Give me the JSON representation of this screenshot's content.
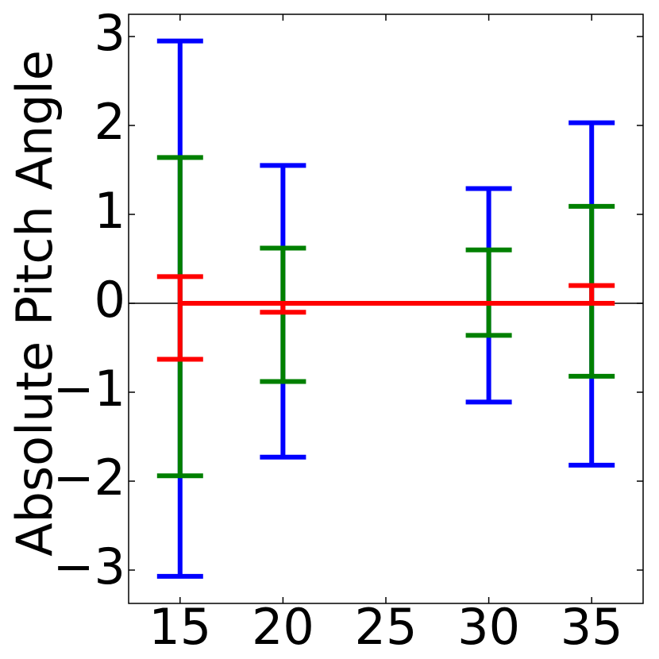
{
  "chart_data": {
    "type": "errorbar",
    "y_label": "Absolute Pitch Angle",
    "x": [
      15,
      20,
      25,
      30,
      35
    ],
    "xlim": [
      12.5,
      37.5
    ],
    "xticks": [
      15,
      20,
      25,
      30,
      35
    ],
    "ylim": [
      -3.375,
      3.25
    ],
    "yticks": [
      {
        "value": -3,
        "label": "−3"
      },
      {
        "value": -2,
        "label": "−2"
      },
      {
        "value": -1,
        "label": "−1"
      },
      0,
      1,
      2,
      3
    ],
    "zero_line": true,
    "series": [
      {
        "color": "#0000ff",
        "values": [
          0,
          0,
          0,
          0,
          0
        ],
        "err_high": [
          2.95,
          1.55,
          0,
          1.29,
          2.03
        ],
        "err_low": [
          3.07,
          1.73,
          0,
          1.11,
          1.82
        ]
      },
      {
        "color": "#008000",
        "values": [
          0,
          0,
          0,
          0,
          0
        ],
        "err_high": [
          1.64,
          0.62,
          0,
          0.6,
          1.09
        ],
        "err_low": [
          1.94,
          0.88,
          0,
          0.36,
          0.82
        ]
      },
      {
        "color": "#ff0000",
        "values": [
          0,
          0,
          0,
          0,
          0
        ],
        "err_high": [
          0.3,
          0,
          0,
          0,
          0.2
        ],
        "err_low": [
          0.63,
          0.1,
          0,
          0,
          0
        ]
      }
    ]
  }
}
